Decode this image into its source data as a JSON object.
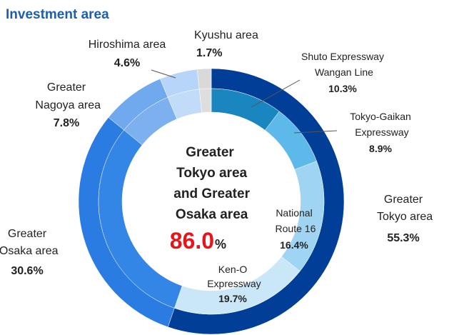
{
  "chart_data": {
    "type": "donut",
    "title": "Investment area",
    "outer": {
      "categories": [
        "Greater Tokyo area",
        "Greater Osaka area",
        "Greater Nagoya area",
        "Hiroshima area",
        "Kyushu area"
      ],
      "values": [
        55.3,
        30.6,
        7.8,
        4.6,
        1.7
      ],
      "value_labels": [
        "55.3%",
        "30.6%",
        "7.8%",
        "4.6%",
        "1.7%"
      ],
      "colors": [
        "#003e98",
        "#2a7ce2",
        "#70a9ed",
        "#b7d5f8",
        "#d9d9d9"
      ],
      "inner_colors": [
        null,
        "#3385e6",
        "#7cb0ef",
        "#c2dbf9",
        "#dedede"
      ]
    },
    "inner": {
      "categories": [
        "Shuto Expressway Wangan Line",
        "Tokyo-Gaikan Expressway",
        "National Route 16",
        "Ken-O Expressway"
      ],
      "values": [
        10.3,
        8.9,
        16.4,
        19.7
      ],
      "value_labels": [
        "10.3%",
        "8.9%",
        "16.4%",
        "19.7%"
      ],
      "colors": [
        "#1a86c0",
        "#5cb9e9",
        "#9fd4f3",
        "#cae7f8"
      ]
    },
    "center_text": "Greater Tokyo area and Greater Osaka area",
    "center_value": {
      "value": 86,
      "label": "86.0"
    },
    "center_unit": "%"
  }
}
